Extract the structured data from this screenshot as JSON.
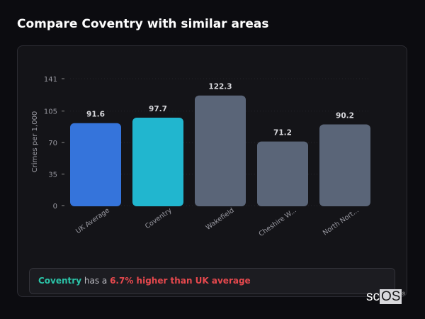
{
  "page": {
    "title": "Compare Coventry with similar areas"
  },
  "chart_data": {
    "type": "bar",
    "categories": [
      "UK Average",
      "Coventry",
      "Wakefield",
      "Cheshire W...",
      "North Nort..."
    ],
    "values": [
      91.6,
      97.7,
      122.3,
      71.2,
      90.2
    ],
    "data_labels": [
      "91.6",
      "97.7",
      "122.3",
      "71.2",
      "90.2"
    ],
    "colors": [
      "#3574db",
      "#21b6cf",
      "#5a6578",
      "#5a6578",
      "#5a6578"
    ],
    "ylabel": "Crimes per 1,000",
    "xlabel": "",
    "ylim": [
      0,
      141
    ],
    "yticks": [
      0,
      35,
      70,
      105,
      141
    ],
    "grid": true
  },
  "footer": {
    "area": "Coventry",
    "text": "has a",
    "comparison": "6.7% higher than UK average"
  },
  "logo": {
    "text_a": "sc",
    "text_b": "OS",
    "mark": "®"
  }
}
